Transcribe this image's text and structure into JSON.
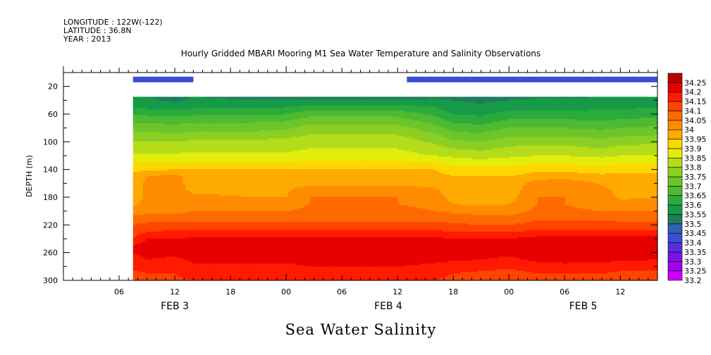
{
  "header": {
    "longitude": "LONGITUDE : 122W(-122)",
    "latitude": "LATITUDE : 36.8N",
    "year": "YEAR : 2013"
  },
  "chart_data": {
    "type": "heatmap",
    "title": "Hourly Gridded MBARI Mooring M1 Sea Water Temperature and Salinity Observations",
    "subtitle": "Sea Water Salinity",
    "ylabel": "DEPTH (m)",
    "x_range_hours": [
      0,
      64
    ],
    "y_range": [
      0,
      300
    ],
    "y_inverted": true,
    "x_ticks": [
      {
        "hour": 6,
        "label": "06"
      },
      {
        "hour": 12,
        "label": "12"
      },
      {
        "hour": 18,
        "label": "18"
      },
      {
        "hour": 24,
        "label": "00"
      },
      {
        "hour": 30,
        "label": "06"
      },
      {
        "hour": 36,
        "label": "12"
      },
      {
        "hour": 42,
        "label": "18"
      },
      {
        "hour": 48,
        "label": "00"
      },
      {
        "hour": 54,
        "label": "06"
      },
      {
        "hour": 60,
        "label": "12"
      }
    ],
    "date_labels": [
      {
        "hour": 12,
        "label": "FEB  3"
      },
      {
        "hour": 35,
        "label": "FEB  4"
      },
      {
        "hour": 56,
        "label": "FEB  5"
      }
    ],
    "y_ticks": [
      20,
      60,
      100,
      140,
      180,
      220,
      260,
      300
    ],
    "levels": [
      33.2,
      33.25,
      33.3,
      33.35,
      33.4,
      33.45,
      33.5,
      33.55,
      33.6,
      33.65,
      33.7,
      33.75,
      33.8,
      33.85,
      33.9,
      33.95,
      34,
      34.05,
      34.1,
      34.15,
      34.2,
      34.25
    ],
    "level_labels": [
      "33.2",
      "33.25",
      "33.3",
      "33.35",
      "33.4",
      "33.45",
      "33.5",
      "33.55",
      "33.6",
      "33.65",
      "33.7",
      "33.75",
      "33.8",
      "33.85",
      "33.9",
      "33.95",
      "34",
      "34.05",
      "34.1",
      "34.15",
      "34.2",
      "34.25"
    ],
    "colors": [
      "#cc00ff",
      "#a300f0",
      "#7a14e6",
      "#5a2ee0",
      "#3c4cd6",
      "#2c63b4",
      "#1e7c5c",
      "#169a48",
      "#2bab3c",
      "#4dba32",
      "#6cc52a",
      "#8ccf24",
      "#b5dc1a",
      "#e2ee0a",
      "#ffd700",
      "#ffaa00",
      "#ff8c00",
      "#ff6a00",
      "#ff4400",
      "#ff1a00",
      "#e60000",
      "#b80000"
    ],
    "near_surface_bars": [
      {
        "x_start": 7.5,
        "x_end": 14,
        "depth": 10,
        "value": 33.4
      },
      {
        "x_start": 37,
        "x_end": 64,
        "depth": 10,
        "value": 33.4
      }
    ],
    "data_x_start_hours": 7.5,
    "depths": [
      35,
      40,
      50,
      60,
      70,
      80,
      90,
      100,
      110,
      120,
      130,
      140,
      150,
      160,
      170,
      180,
      190,
      200,
      210,
      220,
      230,
      240,
      250,
      260,
      270,
      280,
      290,
      300
    ],
    "profiles": [
      {
        "hour": 7.5,
        "values": [
          33.56,
          33.57,
          33.6,
          33.64,
          33.69,
          33.73,
          33.77,
          33.8,
          33.83,
          33.86,
          33.9,
          33.94,
          33.96,
          33.97,
          33.98,
          33.98,
          33.99,
          34.02,
          34.07,
          34.1,
          34.13,
          34.15,
          34.2,
          34.2,
          34.18,
          34.16,
          34.14,
          34.13
        ]
      },
      {
        "hour": 9,
        "values": [
          33.55,
          33.56,
          33.59,
          33.64,
          33.69,
          33.73,
          33.77,
          33.8,
          33.83,
          33.86,
          33.9,
          33.94,
          34.0,
          34.01,
          34.01,
          34.01,
          34.01,
          34.03,
          34.08,
          34.11,
          34.15,
          34.2,
          34.22,
          34.22,
          34.2,
          34.16,
          34.15,
          34.14
        ]
      },
      {
        "hour": 12,
        "values": [
          33.53,
          33.54,
          33.58,
          33.63,
          33.68,
          33.72,
          33.76,
          33.8,
          33.83,
          33.86,
          33.9,
          33.95,
          34.02,
          34.02,
          34.02,
          34.02,
          34.01,
          34.03,
          34.08,
          34.11,
          34.16,
          34.2,
          34.2,
          34.21,
          34.19,
          34.17,
          34.15,
          34.14
        ]
      },
      {
        "hour": 14,
        "values": [
          33.55,
          33.56,
          33.59,
          33.64,
          33.69,
          33.73,
          33.77,
          33.81,
          33.84,
          33.86,
          33.9,
          33.95,
          33.97,
          33.98,
          33.99,
          34.01,
          34.04,
          34.05,
          34.08,
          34.12,
          34.16,
          34.21,
          34.22,
          34.22,
          34.21,
          34.19,
          34.17,
          34.15
        ]
      },
      {
        "hour": 20,
        "values": [
          33.54,
          33.55,
          33.59,
          33.64,
          33.69,
          33.73,
          33.77,
          33.81,
          33.84,
          33.86,
          33.9,
          33.95,
          33.97,
          33.98,
          33.99,
          34.0,
          34.04,
          34.05,
          34.08,
          34.12,
          34.16,
          34.21,
          34.22,
          34.22,
          34.21,
          34.19,
          34.16,
          34.15
        ]
      },
      {
        "hour": 24,
        "values": [
          33.54,
          33.55,
          33.6,
          33.65,
          33.7,
          33.74,
          33.78,
          33.82,
          33.84,
          33.86,
          33.9,
          33.95,
          33.97,
          33.98,
          33.99,
          34.0,
          34.03,
          34.05,
          34.08,
          34.12,
          34.16,
          34.21,
          34.22,
          34.22,
          34.21,
          34.19,
          34.16,
          34.15
        ]
      },
      {
        "hour": 26.5,
        "values": [
          33.53,
          33.55,
          33.62,
          33.68,
          33.73,
          33.77,
          33.8,
          33.83,
          33.85,
          33.87,
          33.91,
          33.95,
          33.97,
          33.98,
          34.04,
          34.05,
          34.05,
          34.06,
          34.08,
          34.12,
          34.16,
          34.21,
          34.23,
          34.23,
          34.22,
          34.2,
          34.17,
          34.15
        ]
      },
      {
        "hour": 30,
        "values": [
          33.53,
          33.55,
          33.62,
          33.68,
          33.73,
          33.77,
          33.8,
          33.83,
          33.85,
          33.87,
          33.91,
          33.95,
          33.97,
          33.98,
          34.04,
          34.05,
          34.05,
          34.06,
          34.08,
          34.12,
          34.16,
          34.21,
          34.25,
          34.23,
          34.22,
          34.2,
          34.17,
          34.15
        ]
      },
      {
        "hour": 36,
        "values": [
          33.53,
          33.55,
          33.62,
          33.68,
          33.73,
          33.77,
          33.8,
          33.83,
          33.85,
          33.87,
          33.91,
          33.95,
          33.97,
          33.98,
          34.04,
          34.05,
          34.05,
          34.06,
          34.08,
          34.12,
          34.16,
          34.21,
          34.25,
          34.23,
          34.22,
          34.2,
          34.17,
          34.15
        ]
      },
      {
        "hour": 40,
        "values": [
          33.54,
          33.56,
          33.6,
          33.64,
          33.68,
          33.72,
          33.76,
          33.79,
          33.82,
          33.85,
          33.9,
          33.95,
          33.97,
          33.98,
          34.01,
          34.03,
          34.04,
          34.05,
          34.08,
          34.12,
          34.16,
          34.21,
          34.22,
          34.22,
          34.21,
          34.19,
          34.16,
          34.15
        ]
      },
      {
        "hour": 42,
        "values": [
          33.53,
          33.55,
          33.57,
          33.6,
          33.64,
          33.68,
          33.72,
          33.76,
          33.8,
          33.84,
          33.88,
          33.92,
          33.95,
          33.96,
          33.97,
          33.98,
          34.0,
          34.04,
          34.07,
          34.11,
          34.15,
          34.2,
          34.23,
          34.25,
          34.21,
          34.17,
          34.15,
          34.14
        ]
      },
      {
        "hour": 45,
        "values": [
          33.52,
          33.54,
          33.56,
          33.59,
          33.63,
          33.67,
          33.71,
          33.75,
          33.79,
          33.83,
          33.87,
          33.92,
          33.95,
          33.96,
          33.97,
          33.98,
          33.99,
          34.03,
          34.07,
          34.1,
          34.15,
          34.2,
          34.22,
          34.22,
          34.2,
          34.17,
          34.14,
          34.13
        ]
      },
      {
        "hour": 48,
        "values": [
          33.53,
          33.55,
          33.58,
          33.62,
          33.66,
          33.7,
          33.74,
          33.78,
          33.81,
          33.84,
          33.88,
          33.92,
          33.95,
          33.96,
          33.97,
          33.98,
          34.0,
          34.03,
          34.06,
          34.1,
          34.15,
          34.2,
          34.21,
          34.21,
          34.19,
          34.16,
          34.13,
          34.12
        ]
      },
      {
        "hour": 51,
        "values": [
          33.54,
          33.56,
          33.58,
          33.62,
          33.66,
          33.7,
          33.74,
          33.78,
          33.82,
          33.85,
          33.89,
          33.94,
          33.97,
          34.03,
          34.04,
          34.05,
          34.05,
          34.06,
          34.09,
          34.12,
          34.16,
          34.22,
          34.23,
          34.23,
          34.21,
          34.18,
          34.15,
          34.14
        ]
      },
      {
        "hour": 54,
        "values": [
          33.54,
          33.56,
          33.58,
          33.62,
          33.66,
          33.7,
          33.74,
          33.78,
          33.82,
          33.85,
          33.89,
          33.94,
          33.97,
          34.05,
          34.05,
          34.05,
          34.05,
          34.06,
          34.09,
          34.12,
          34.16,
          34.22,
          34.25,
          34.25,
          34.22,
          34.18,
          34.15,
          34.14
        ]
      },
      {
        "hour": 58,
        "values": [
          33.55,
          33.57,
          33.59,
          33.62,
          33.65,
          33.69,
          33.73,
          33.77,
          33.8,
          33.84,
          33.88,
          33.93,
          33.96,
          33.99,
          34.02,
          34.03,
          34.03,
          34.05,
          34.09,
          34.12,
          34.16,
          34.22,
          34.23,
          34.23,
          34.21,
          34.18,
          34.15,
          34.14
        ]
      },
      {
        "hour": 60,
        "values": [
          33.55,
          33.57,
          33.59,
          33.62,
          33.66,
          33.7,
          33.74,
          33.78,
          33.82,
          33.85,
          33.89,
          33.94,
          33.96,
          33.97,
          33.98,
          33.99,
          34.02,
          34.05,
          34.08,
          34.12,
          34.16,
          34.22,
          34.23,
          34.24,
          34.21,
          34.17,
          34.14,
          34.13
        ]
      },
      {
        "hour": 64,
        "values": [
          33.55,
          33.57,
          33.6,
          33.63,
          33.67,
          33.71,
          33.75,
          33.79,
          33.82,
          33.85,
          33.89,
          33.94,
          33.96,
          33.97,
          33.98,
          34.0,
          34.03,
          34.05,
          34.08,
          34.12,
          34.16,
          34.22,
          34.22,
          34.22,
          34.2,
          34.17,
          34.14,
          34.13
        ]
      }
    ]
  }
}
